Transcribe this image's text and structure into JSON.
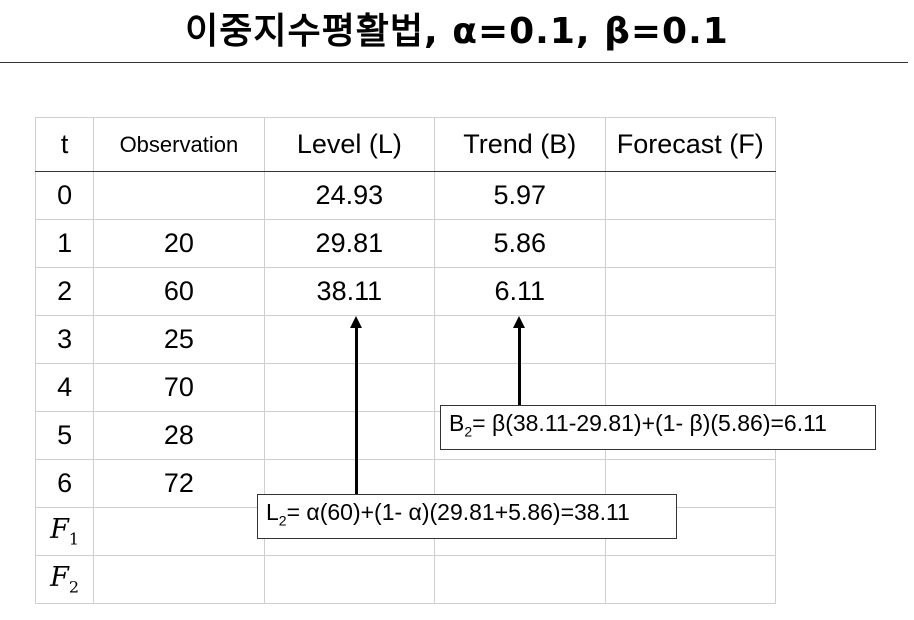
{
  "title": "이중지수평활법, α=0.1, β=0.1",
  "table": {
    "headers": [
      "t",
      "Observation",
      "Level (L)",
      "Trend (B)",
      "Forecast (F)"
    ],
    "rows": [
      {
        "t": "0",
        "obs": "",
        "level": "24.93",
        "trend": "5.97",
        "forecast": ""
      },
      {
        "t": "1",
        "obs": "20",
        "level": "29.81",
        "trend": "5.86",
        "forecast": ""
      },
      {
        "t": "2",
        "obs": "60",
        "level": "38.11",
        "trend": "6.11",
        "forecast": ""
      },
      {
        "t": "3",
        "obs": "25",
        "level": "",
        "trend": "",
        "forecast": ""
      },
      {
        "t": "4",
        "obs": "70",
        "level": "",
        "trend": "",
        "forecast": ""
      },
      {
        "t": "5",
        "obs": "28",
        "level": "",
        "trend": "",
        "forecast": ""
      },
      {
        "t": "6",
        "obs": "72",
        "level": "",
        "trend": "",
        "forecast": ""
      }
    ],
    "f_rows": [
      {
        "sym": "F",
        "sub": "1"
      },
      {
        "sym": "F",
        "sub": "2"
      }
    ]
  },
  "formulas": {
    "trend": {
      "sym": "B",
      "sub": "2",
      "expr": "= β(38.11-29.81)+(1- β)(5.86)=6.11"
    },
    "level": {
      "sym": "L",
      "sub": "2",
      "expr": "= α(60)+(1- α)(29.81+5.86)=38.11"
    }
  }
}
